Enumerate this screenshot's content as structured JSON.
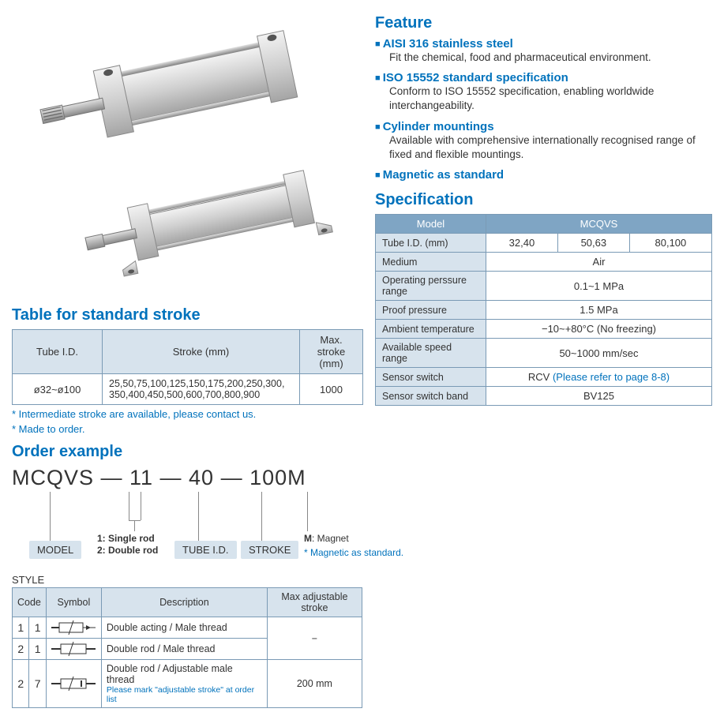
{
  "feature": {
    "heading": "Feature",
    "items": [
      {
        "title": "AISI 316 stainless steel",
        "desc": "Fit the chemical, food and pharmaceutical environment."
      },
      {
        "title": "ISO 15552 standard specification",
        "desc": "Conform to ISO 15552 specification, enabling worldwide interchangeability."
      },
      {
        "title": "Cylinder mountings",
        "desc": "Available with comprehensive internationally recognised range of fixed and flexible mountings."
      },
      {
        "title": "Magnetic as standard",
        "desc": ""
      }
    ]
  },
  "spec": {
    "heading": "Specification",
    "model_label": "Model",
    "model_value": "MCQVS",
    "rows": [
      {
        "label": "Tube I.D. (mm)",
        "cells": [
          "32,40",
          "50,63",
          "80,100"
        ]
      },
      {
        "label": "Medium",
        "span": "Air"
      },
      {
        "label": "Operating perssure range",
        "span": "0.1~1 MPa"
      },
      {
        "label": "Proof pressure",
        "span": "1.5 MPa"
      },
      {
        "label": "Ambient temperature",
        "span": "−10~+80°C (No freezing)"
      },
      {
        "label": "Available speed range",
        "span": "50~1000 mm/sec"
      },
      {
        "label": "Sensor switch",
        "span_prefix": "RCV ",
        "span_link": "(Please refer to page 8-8)"
      },
      {
        "label": "Sensor switch band",
        "span": "BV125"
      }
    ]
  },
  "stroke": {
    "heading": "Table for standard stroke",
    "headers": [
      "Tube I.D.",
      "Stroke (mm)",
      "Max. stroke (mm)"
    ],
    "row": {
      "tube": "ø32~ø100",
      "strokes": "25,50,75,100,125,150,175,200,250,300, 350,400,450,500,600,700,800,900",
      "max": "1000"
    },
    "notes": [
      "* Intermediate stroke are available, please contact us.",
      "* Made to order."
    ]
  },
  "order": {
    "heading": "Order example",
    "code": "MCQVS — 11 — 40 — 100M",
    "labels": {
      "model": "MODEL",
      "style1": "1: Single rod",
      "style2": "2: Double rod",
      "tube": "TUBE I.D.",
      "stroke": "STROKE",
      "magnet_code": "M",
      "magnet_label": ": Magnet",
      "magnet_note": "* Magnetic as standard."
    }
  },
  "style": {
    "heading": "STYLE",
    "headers": [
      "Code",
      "Symbol",
      "Description",
      "Max adjustable stroke"
    ],
    "rows": [
      {
        "c1": "1",
        "c2": "1",
        "desc": "Double acting / Male thread",
        "max": "−",
        "rs": true
      },
      {
        "c1": "2",
        "c2": "1",
        "desc": "Double rod / Male thread"
      },
      {
        "c1": "2",
        "c2": "7",
        "desc": "Double rod / Adjustable male thread",
        "note": "Please mark \"adjustable stroke\" at order list",
        "max": "200 mm"
      }
    ]
  },
  "colors": {
    "blue": "#0072bc",
    "header_bg": "#7fa5c4",
    "cell_bg": "#d7e3ed",
    "border": "#7a9ab5",
    "silver1": "#e8e8e8",
    "silver2": "#b8b8b8",
    "silver3": "#9a9a9a"
  }
}
